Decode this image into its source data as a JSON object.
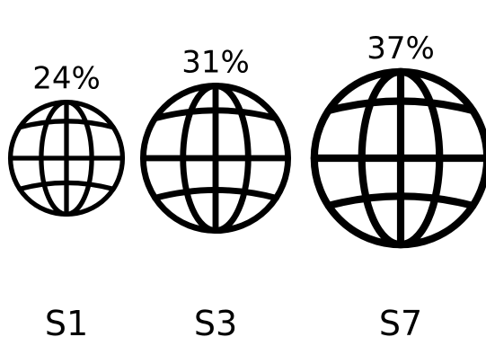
{
  "chart_data": {
    "type": "bar",
    "mark": "globe-icon",
    "categories": [
      "S1",
      "S3",
      "S7"
    ],
    "values": [
      24,
      31,
      37
    ],
    "value_labels": [
      "24%",
      "31%",
      "37%"
    ],
    "title": "",
    "xlabel": "",
    "ylabel": "",
    "grid": false,
    "legend": "none",
    "colors": {
      "mark": "#000000",
      "background": "#ffffff"
    }
  }
}
